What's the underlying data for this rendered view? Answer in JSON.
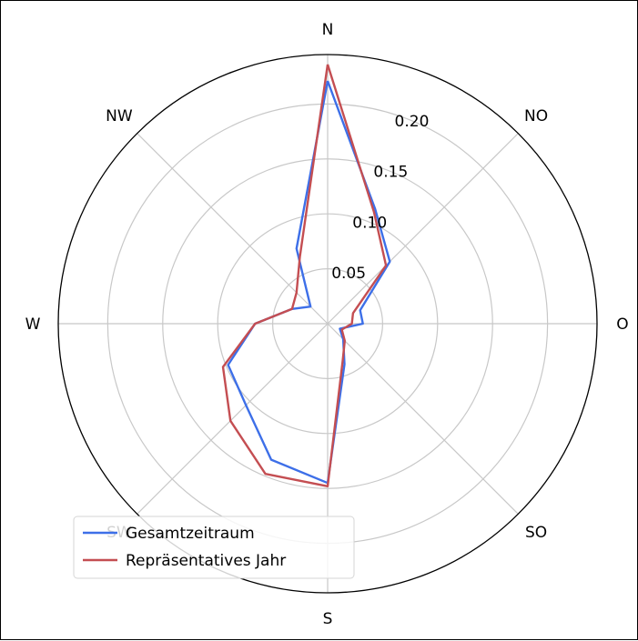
{
  "chart_data": {
    "type": "polar-line",
    "directions": [
      "N",
      "NO",
      "O",
      "SO",
      "S",
      "SW",
      "W",
      "NW"
    ],
    "r_ticks": [
      0.05,
      0.1,
      0.15,
      0.2
    ],
    "r_tick_labels": [
      "0.05",
      "0.10",
      "0.15",
      "0.20"
    ],
    "rmax": 0.245,
    "grid": true,
    "legend_position": "lower-left",
    "angles_deg": [
      0,
      22.5,
      45,
      67.5,
      90,
      112.5,
      135,
      157.5,
      180,
      202.5,
      225,
      247.5,
      270,
      292.5,
      315,
      337.5
    ],
    "series": [
      {
        "name": "Gesamtzeitraum",
        "color": "#3d6fe8",
        "values": [
          0.221,
          0.113,
          0.08,
          0.032,
          0.032,
          0.012,
          0.02,
          0.04,
          0.145,
          0.134,
          0.105,
          0.098,
          0.066,
          0.035,
          0.022,
          0.074
        ]
      },
      {
        "name": "Repräsentatives Jahr",
        "color": "#c44e52",
        "values": [
          0.236,
          0.11,
          0.075,
          0.025,
          0.022,
          0.014,
          0.022,
          0.036,
          0.148,
          0.148,
          0.125,
          0.103,
          0.066,
          0.035,
          0.04,
          0.066
        ]
      }
    ]
  }
}
